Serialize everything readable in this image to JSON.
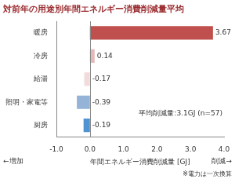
{
  "chart_data": {
    "type": "bar",
    "orientation": "horizontal",
    "title": "対前年の用途別年間エネルギー消費削減量平均",
    "categories": [
      "暖房",
      "冷房",
      "給湯",
      "照明・家電等",
      "厨房"
    ],
    "values": [
      3.67,
      0.14,
      -0.17,
      -0.39,
      -0.19
    ],
    "colors": [
      "#c0504d",
      "#e6b9b8",
      "#f2dcdb",
      "#95b3d7",
      "#4f93d1"
    ],
    "xlim": [
      -1,
      4
    ],
    "xticks": [
      {
        "value": -1,
        "label": "-1.0"
      },
      {
        "value": 0,
        "label": "0.0"
      },
      {
        "value": 1,
        "label": "1.0"
      },
      {
        "value": 2,
        "label": "2.0"
      },
      {
        "value": 3,
        "label": "3.0"
      },
      {
        "value": 4,
        "label": "4.0"
      }
    ],
    "x_label": "年間エネルギー消費削減量 [GJ]",
    "annotations": [
      "平均削減量:3.1GJ (n=57)",
      "←増加",
      "削減→",
      "※電力は一次換算"
    ],
    "data_labels": true,
    "grid": false
  }
}
